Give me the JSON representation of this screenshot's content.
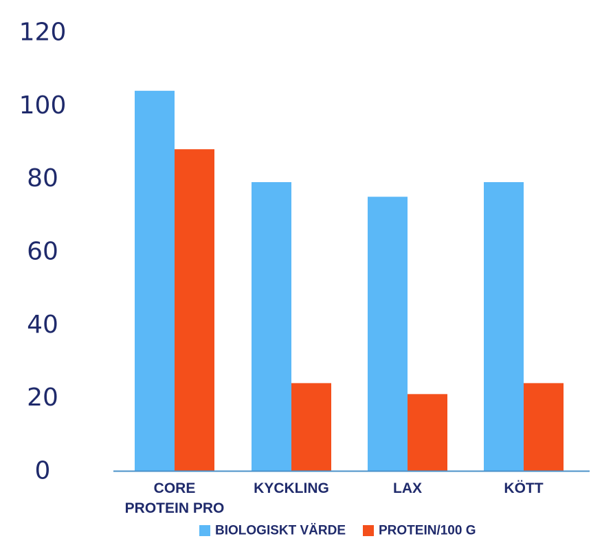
{
  "chart_data": {
    "type": "bar",
    "title": "",
    "xlabel": "",
    "ylabel": "",
    "categories": [
      [
        "CORE",
        "PROTEIN PRO"
      ],
      [
        "KYCKLING"
      ],
      [
        "LAX"
      ],
      [
        "KÖTT"
      ]
    ],
    "series": [
      {
        "name": "BIOLOGISKT VÄRDE",
        "color": "#5bb8f7",
        "values": [
          104,
          79,
          75,
          79
        ]
      },
      {
        "name": "PROTEIN/100 G",
        "color": "#f44f1b",
        "values": [
          88,
          24,
          21,
          24
        ]
      }
    ],
    "ylim": [
      0,
      120
    ],
    "yticks": [
      0,
      20,
      40,
      60,
      80,
      100,
      120
    ],
    "grid": false,
    "legend_position": "bottom-center",
    "axis_color": "#4a90c8",
    "text_color": "#1f2a6b"
  }
}
